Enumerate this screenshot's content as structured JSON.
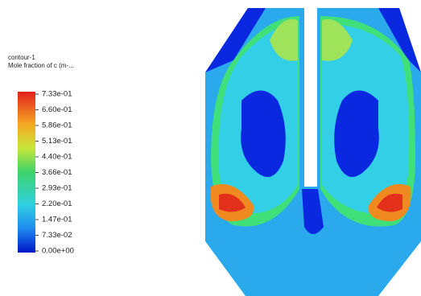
{
  "legend": {
    "title": "contour-1",
    "subtitle": "Mole fraction of c (m-...",
    "labels": [
      "7.33e-01",
      "6.60e-01",
      "5.86e-01",
      "5.13e-01",
      "4.40e-01",
      "3.66e-01",
      "2.93e-01",
      "2.20e-01",
      "1.47e-01",
      "7.33e-02",
      "0.00e+00"
    ]
  }
}
